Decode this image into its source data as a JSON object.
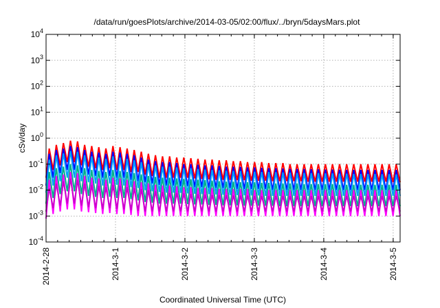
{
  "chart_data": {
    "type": "line",
    "title": "/data/run/goesPlots/archive/2014-03-05/02:00/flux/../bryn/5daysMars.plot",
    "xlabel": "Coordinated Universal Time (UTC)",
    "ylabel": "cSv/day",
    "y_scale": "log",
    "ylim": [
      0.0001,
      10000
    ],
    "xlim_days": [
      0,
      5.1
    ],
    "grid": true,
    "legend": "none",
    "y_ticks": [
      {
        "base": "10",
        "exp": "-4",
        "value": 0.0001
      },
      {
        "base": "10",
        "exp": "-3",
        "value": 0.001
      },
      {
        "base": "10",
        "exp": "-2",
        "value": 0.01
      },
      {
        "base": "10",
        "exp": "-1",
        "value": 0.1
      },
      {
        "base": "10",
        "exp": "0",
        "value": 1
      },
      {
        "base": "10",
        "exp": "1",
        "value": 10
      },
      {
        "base": "10",
        "exp": "2",
        "value": 100
      },
      {
        "base": "10",
        "exp": "3",
        "value": 1000
      },
      {
        "base": "10",
        "exp": "4",
        "value": 10000
      }
    ],
    "x_ticks": [
      {
        "label": "2014-2-28",
        "day": 0
      },
      {
        "label": "2014-3-1",
        "day": 1
      },
      {
        "label": "2014-3-2",
        "day": 2
      },
      {
        "label": "2014-3-3",
        "day": 3
      },
      {
        "label": "2014-3-4",
        "day": 4
      },
      {
        "label": "2014-3-5",
        "day": 5
      }
    ],
    "series": [
      {
        "color": "#ff0000",
        "peaks": [
          0.4,
          0.55,
          0.65,
          0.8,
          0.75,
          0.55,
          0.5,
          0.45,
          0.4,
          0.5,
          0.45,
          0.4,
          0.35,
          0.3,
          0.25,
          0.22,
          0.2,
          0.2,
          0.18,
          0.18,
          0.17,
          0.16,
          0.15,
          0.15,
          0.14,
          0.14,
          0.13,
          0.13,
          0.12,
          0.12,
          0.12,
          0.11,
          0.11,
          0.11,
          0.1,
          0.1,
          0.1,
          0.1,
          0.1,
          0.1,
          0.1,
          0.1,
          0.1,
          0.1,
          0.1,
          0.1,
          0.1,
          0.1,
          0.1,
          0.1
        ],
        "troughs": [
          0.03,
          0.06,
          0.09,
          0.12,
          0.12,
          0.09,
          0.08,
          0.07,
          0.06,
          0.07,
          0.06,
          0.06,
          0.05,
          0.05,
          0.04,
          0.035,
          0.03,
          0.03,
          0.03,
          0.03,
          0.03,
          0.028,
          0.027,
          0.026,
          0.025,
          0.025,
          0.025,
          0.024,
          0.024,
          0.023,
          0.023,
          0.023,
          0.022,
          0.022,
          0.022,
          0.022,
          0.022,
          0.021,
          0.021,
          0.021,
          0.021,
          0.021,
          0.021,
          0.021,
          0.021,
          0.021,
          0.021,
          0.021,
          0.021,
          0.02
        ]
      },
      {
        "color": "#0000ff",
        "peaks": [
          0.25,
          0.35,
          0.4,
          0.5,
          0.45,
          0.35,
          0.3,
          0.28,
          0.25,
          0.3,
          0.28,
          0.25,
          0.22,
          0.18,
          0.15,
          0.13,
          0.12,
          0.12,
          0.11,
          0.1,
          0.1,
          0.095,
          0.09,
          0.09,
          0.085,
          0.08,
          0.08,
          0.078,
          0.075,
          0.075,
          0.072,
          0.07,
          0.07,
          0.068,
          0.066,
          0.065,
          0.065,
          0.064,
          0.063,
          0.062,
          0.062,
          0.061,
          0.06,
          0.06,
          0.06,
          0.06,
          0.06,
          0.06,
          0.06,
          0.06
        ],
        "troughs": [
          0.015,
          0.03,
          0.045,
          0.06,
          0.06,
          0.045,
          0.04,
          0.035,
          0.03,
          0.035,
          0.03,
          0.03,
          0.025,
          0.022,
          0.02,
          0.018,
          0.016,
          0.015,
          0.015,
          0.014,
          0.014,
          0.013,
          0.013,
          0.012,
          0.012,
          0.012,
          0.012,
          0.011,
          0.011,
          0.011,
          0.011,
          0.011,
          0.01,
          0.01,
          0.01,
          0.01,
          0.01,
          0.01,
          0.01,
          0.01,
          0.01,
          0.01,
          0.01,
          0.01,
          0.01,
          0.01,
          0.01,
          0.01,
          0.01,
          0.01
        ]
      },
      {
        "color": "#00a0ff",
        "peaks": [
          0.15,
          0.22,
          0.26,
          0.32,
          0.3,
          0.22,
          0.2,
          0.18,
          0.16,
          0.2,
          0.18,
          0.16,
          0.14,
          0.12,
          0.1,
          0.09,
          0.08,
          0.08,
          0.075,
          0.07,
          0.07,
          0.065,
          0.062,
          0.06,
          0.058,
          0.056,
          0.055,
          0.054,
          0.052,
          0.051,
          0.05,
          0.05,
          0.049,
          0.048,
          0.047,
          0.046,
          0.046,
          0.045,
          0.045,
          0.044,
          0.044,
          0.043,
          0.043,
          0.042,
          0.042,
          0.042,
          0.042,
          0.041,
          0.041,
          0.04
        ],
        "troughs": [
          0.008,
          0.015,
          0.022,
          0.03,
          0.03,
          0.022,
          0.02,
          0.018,
          0.015,
          0.018,
          0.016,
          0.015,
          0.013,
          0.012,
          0.01,
          0.009,
          0.0085,
          0.008,
          0.008,
          0.0078,
          0.0075,
          0.0072,
          0.007,
          0.007,
          0.0068,
          0.0066,
          0.0065,
          0.0064,
          0.0063,
          0.0062,
          0.0062,
          0.006,
          0.006,
          0.006,
          0.006,
          0.006,
          0.006,
          0.006,
          0.006,
          0.006,
          0.006,
          0.006,
          0.006,
          0.006,
          0.006,
          0.006,
          0.006,
          0.006,
          0.006,
          0.006
        ]
      },
      {
        "color": "#00b08a",
        "peaks": [
          0.05,
          0.07,
          0.08,
          0.1,
          0.09,
          0.07,
          0.06,
          0.055,
          0.05,
          0.06,
          0.055,
          0.05,
          0.045,
          0.04,
          0.035,
          0.032,
          0.03,
          0.03,
          0.028,
          0.027,
          0.026,
          0.025,
          0.024,
          0.023,
          0.022,
          0.021,
          0.021,
          0.02,
          0.02,
          0.02,
          0.019,
          0.019,
          0.018,
          0.018,
          0.018,
          0.018,
          0.017,
          0.017,
          0.017,
          0.017,
          0.017,
          0.016,
          0.016,
          0.016,
          0.016,
          0.016,
          0.016,
          0.016,
          0.016,
          0.016
        ],
        "troughs": [
          0.003,
          0.005,
          0.007,
          0.009,
          0.009,
          0.007,
          0.006,
          0.0055,
          0.005,
          0.0055,
          0.005,
          0.005,
          0.0045,
          0.004,
          0.0035,
          0.0033,
          0.003,
          0.003,
          0.003,
          0.003,
          0.0029,
          0.0028,
          0.0028,
          0.0027,
          0.0027,
          0.0026,
          0.0026,
          0.0026,
          0.0025,
          0.0025,
          0.0025,
          0.0025,
          0.0025,
          0.0024,
          0.0024,
          0.0024,
          0.0024,
          0.0024,
          0.0024,
          0.0024,
          0.0024,
          0.0024,
          0.0024,
          0.0024,
          0.0024,
          0.0024,
          0.0024,
          0.0024,
          0.0024,
          0.0024
        ]
      },
      {
        "color": "#ff00ff",
        "peaks": [
          0.025,
          0.035,
          0.04,
          0.05,
          0.045,
          0.035,
          0.03,
          0.028,
          0.025,
          0.03,
          0.028,
          0.025,
          0.022,
          0.02,
          0.018,
          0.016,
          0.015,
          0.015,
          0.014,
          0.013,
          0.013,
          0.012,
          0.012,
          0.012,
          0.011,
          0.011,
          0.011,
          0.011,
          0.011,
          0.01,
          0.01,
          0.01,
          0.01,
          0.01,
          0.01,
          0.01,
          0.01,
          0.01,
          0.01,
          0.01,
          0.01,
          0.01,
          0.01,
          0.01,
          0.01,
          0.01,
          0.01,
          0.01,
          0.01,
          0.01
        ],
        "troughs": [
          0.0008,
          0.0012,
          0.0015,
          0.0018,
          0.0018,
          0.0015,
          0.0014,
          0.0013,
          0.0012,
          0.0013,
          0.0012,
          0.0012,
          0.0011,
          0.001,
          0.001,
          0.001,
          0.001,
          0.001,
          0.001,
          0.001,
          0.001,
          0.001,
          0.001,
          0.001,
          0.001,
          0.001,
          0.001,
          0.001,
          0.001,
          0.001,
          0.001,
          0.001,
          0.001,
          0.001,
          0.001,
          0.001,
          0.001,
          0.001,
          0.001,
          0.001,
          0.001,
          0.001,
          0.001,
          0.001,
          0.001,
          0.001,
          0.001,
          0.001,
          0.001,
          0.001
        ]
      },
      {
        "color": "#cc00cc",
        "peaks": [
          0.012,
          0.018,
          0.022,
          0.028,
          0.025,
          0.018,
          0.016,
          0.015,
          0.013,
          0.016,
          0.015,
          0.013,
          0.012,
          0.011,
          0.01,
          0.009,
          0.0085,
          0.008,
          0.0078,
          0.0075,
          0.0072,
          0.007,
          0.0068,
          0.0066,
          0.0065,
          0.0064,
          0.0063,
          0.0062,
          0.0062,
          0.006,
          0.006,
          0.006,
          0.006,
          0.006,
          0.006,
          0.006,
          0.006,
          0.006,
          0.006,
          0.006,
          0.006,
          0.006,
          0.006,
          0.006,
          0.006,
          0.006,
          0.006,
          0.006,
          0.006,
          0.006
        ],
        "troughs": [
          0.0015,
          0.002,
          0.0025,
          0.003,
          0.003,
          0.0025,
          0.0022,
          0.002,
          0.0019,
          0.002,
          0.0019,
          0.0018,
          0.0017,
          0.0016,
          0.0015,
          0.0015,
          0.0015,
          0.0015,
          0.0015,
          0.0015,
          0.0015,
          0.0015,
          0.0015,
          0.0015,
          0.0015,
          0.0015,
          0.0015,
          0.0015,
          0.0015,
          0.0015,
          0.0015,
          0.0015,
          0.0015,
          0.0015,
          0.0015,
          0.0015,
          0.0015,
          0.0015,
          0.0015,
          0.0015,
          0.0015,
          0.0015,
          0.0015,
          0.0015,
          0.0015,
          0.0015,
          0.0015,
          0.0015,
          0.0015,
          0.0015
        ]
      }
    ]
  }
}
